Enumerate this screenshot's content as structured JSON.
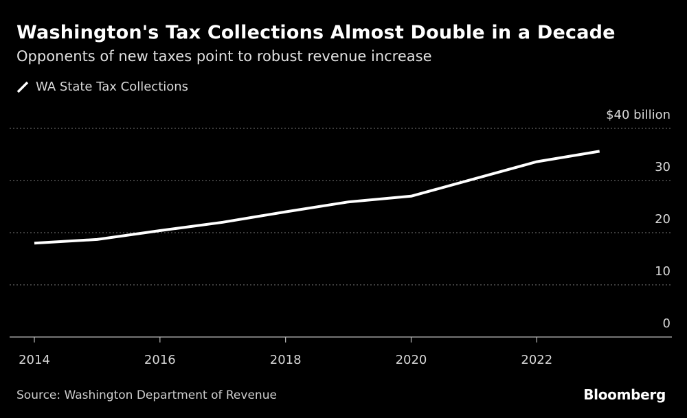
{
  "title": "Washington's Tax Collections Almost Double in a Decade",
  "subtitle": "Opponents of new taxes point to robust revenue increase",
  "source": "Source: Washington Department of Revenue",
  "brand": "Bloomberg",
  "colors": {
    "background": "#000000",
    "line": "#ffffff",
    "grid": "#7a7a7a",
    "text": "#d8d8d8"
  },
  "chart_data": {
    "type": "line",
    "title": "Washington's Tax Collections Almost Double in a Decade",
    "subtitle": "Opponents of new taxes point to robust revenue increase",
    "xlabel": "",
    "ylabel": "",
    "ylim": [
      0,
      40
    ],
    "xlim": [
      2014,
      2023.9
    ],
    "grid": true,
    "legend": "top-left",
    "x": [
      2014,
      2015,
      2016,
      2017,
      2018,
      2019,
      2020,
      2021,
      2022,
      2023
    ],
    "series": [
      {
        "name": "WA State Tax Collections",
        "values": [
          18.0,
          18.7,
          20.4,
          22.0,
          24.0,
          25.9,
          27.0,
          30.3,
          33.6,
          35.6
        ]
      }
    ],
    "y_ticks": [
      {
        "value": 0,
        "label": "0"
      },
      {
        "value": 10,
        "label": "10"
      },
      {
        "value": 20,
        "label": "20"
      },
      {
        "value": 30,
        "label": "30"
      },
      {
        "value": 40,
        "label": "$40 billion"
      }
    ],
    "x_ticks": [
      {
        "value": 2014,
        "label": "2014"
      },
      {
        "value": 2016,
        "label": "2016"
      },
      {
        "value": 2018,
        "label": "2018"
      },
      {
        "value": 2020,
        "label": "2020"
      },
      {
        "value": 2022,
        "label": "2022"
      }
    ]
  }
}
